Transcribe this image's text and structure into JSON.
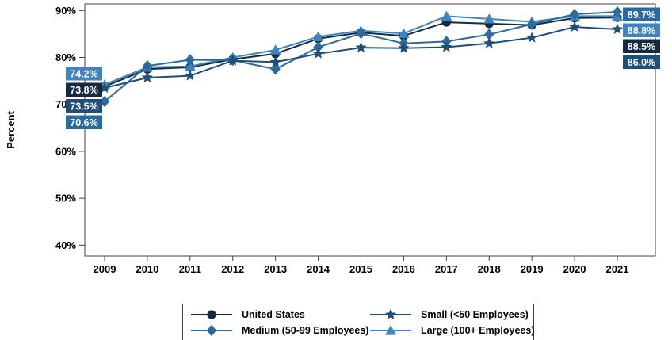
{
  "chart_data": {
    "type": "line",
    "title": "",
    "ylabel": "Percent",
    "xlabel": "",
    "x": [
      2009,
      2010,
      2011,
      2012,
      2013,
      2014,
      2015,
      2016,
      2017,
      2018,
      2019,
      2020,
      2021
    ],
    "y_ticks": [
      90,
      80,
      70,
      60,
      50,
      40
    ],
    "y_tick_suffix": "%",
    "ylim": [
      37.7,
      91.4
    ],
    "grid": false,
    "legend_position": "bottom",
    "series": [
      {
        "key": "us",
        "name": "United States",
        "marker": "circle",
        "color": "#15293F",
        "values": [
          73.8,
          77.5,
          77.9,
          79.6,
          80.8,
          84.0,
          85.3,
          84.6,
          87.5,
          87.2,
          86.9,
          88.4,
          88.5
        ]
      },
      {
        "key": "large",
        "name": "Large (100+ Employees)",
        "marker": "triangle",
        "color": "#3E84BE",
        "values": [
          74.2,
          77.9,
          78.1,
          80.0,
          81.6,
          84.4,
          85.7,
          85.1,
          88.8,
          88.2,
          87.6,
          88.8,
          88.8
        ]
      },
      {
        "key": "medium",
        "name": "Medium (50-99 Employees)",
        "marker": "diamond",
        "color": "#2B6A9F",
        "values": [
          70.6,
          78.2,
          79.5,
          79.4,
          77.5,
          82.2,
          85.1,
          83.0,
          83.4,
          84.9,
          87.1,
          89.2,
          89.7
        ]
      },
      {
        "key": "small",
        "name": "Small (<50 Employees)",
        "marker": "star",
        "color": "#1F4E79",
        "values": [
          73.5,
          75.7,
          76.1,
          79.3,
          79.0,
          80.8,
          82.1,
          82.0,
          82.2,
          83.0,
          84.2,
          86.5,
          86.0
        ]
      }
    ],
    "point_labels": {
      "start": [
        {
          "text": "74.2%",
          "series": "large"
        },
        {
          "text": "73.8%",
          "series": "us"
        },
        {
          "text": "73.5%",
          "series": "small"
        },
        {
          "text": "70.6%",
          "series": "medium"
        }
      ],
      "end": [
        {
          "text": "89.7%",
          "series": "medium"
        },
        {
          "text": "88.8%",
          "series": "large"
        },
        {
          "text": "88.5%",
          "series": "us"
        },
        {
          "text": "86.0%",
          "series": "small"
        }
      ]
    }
  },
  "legend": {
    "items": [
      {
        "series": "us"
      },
      {
        "series": "small"
      },
      {
        "series": "medium"
      },
      {
        "series": "large"
      }
    ]
  }
}
